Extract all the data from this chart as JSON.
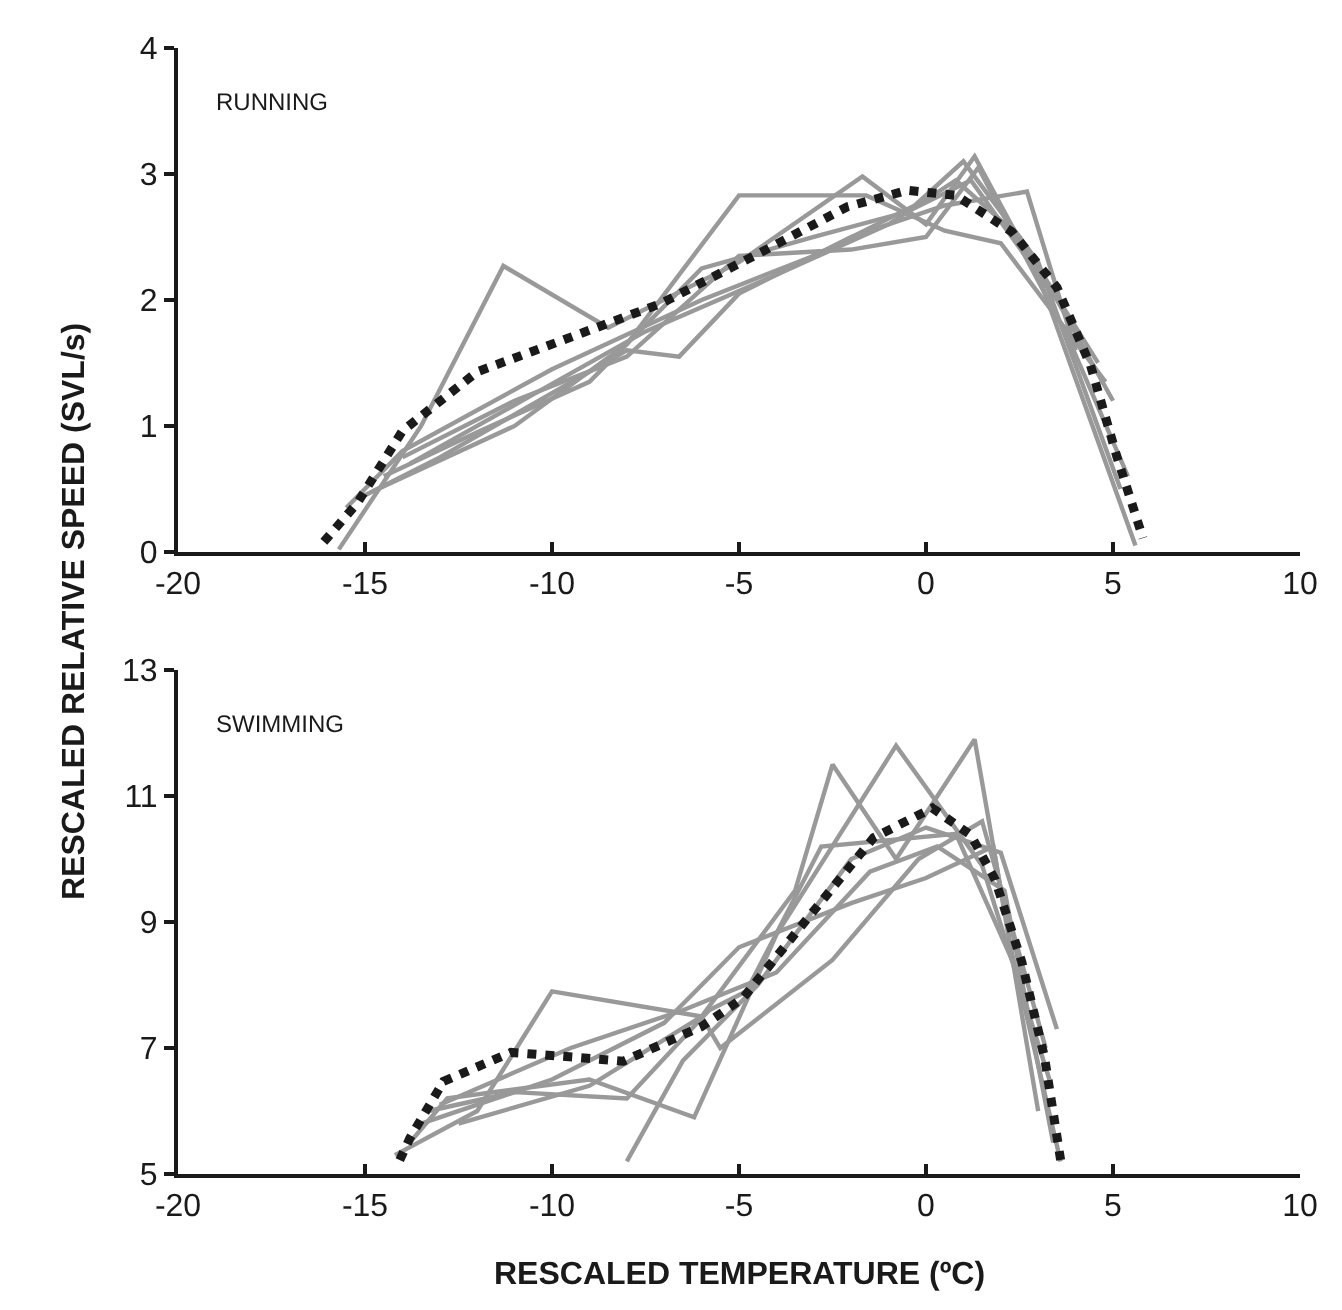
{
  "chart_data": [
    {
      "type": "line",
      "title": "RUNNING",
      "ylabel": "RESCALED RELATIVE SPEED (SVL/s)",
      "xlim": [
        -20,
        10
      ],
      "xticks": [
        -20,
        -15,
        -10,
        -5,
        0,
        5,
        10
      ],
      "ylim": [
        0,
        4
      ],
      "yticks": [
        0,
        1,
        2,
        3,
        4
      ],
      "series": [
        {
          "color": "#999999",
          "line_style": "solid",
          "x": [
            -15.7,
            -13.5,
            -11.3,
            -8.5,
            -5,
            -1.7,
            0,
            1.3,
            3,
            5.6
          ],
          "values": [
            0.02,
            1.0,
            2.27,
            1.78,
            2.3,
            2.98,
            2.6,
            3.14,
            2.2,
            0.05
          ]
        },
        {
          "color": "#999999",
          "line_style": "solid",
          "x": [
            -15,
            -13,
            -8,
            -6.6,
            -5,
            -2,
            0.5,
            2.7,
            4
          ],
          "values": [
            0.45,
            0.75,
            1.6,
            1.55,
            2.05,
            2.5,
            2.75,
            2.86,
            1.6
          ]
        },
        {
          "color": "#999999",
          "line_style": "solid",
          "x": [
            -14.8,
            -11,
            -8,
            -5,
            -1.6,
            0.5,
            2,
            4.8
          ],
          "values": [
            0.48,
            1.0,
            1.65,
            2.83,
            2.83,
            2.55,
            2.45,
            1.35
          ]
        },
        {
          "color": "#999999",
          "line_style": "solid",
          "x": [
            -15.5,
            -14,
            -10,
            -6,
            -3,
            -0.3,
            1,
            3,
            5.2
          ],
          "values": [
            0.35,
            0.8,
            1.45,
            2.0,
            2.35,
            2.75,
            3.1,
            2.3,
            0.5
          ]
        },
        {
          "color": "#999999",
          "line_style": "solid",
          "x": [
            -14.5,
            -12,
            -9,
            -6,
            -3,
            -0.5,
            1.2,
            3.5,
            5
          ],
          "values": [
            0.6,
            0.95,
            1.35,
            2.25,
            2.5,
            2.7,
            2.95,
            2.0,
            1.2
          ]
        },
        {
          "color": "#999999",
          "line_style": "solid",
          "x": [
            -14,
            -11,
            -8,
            -5,
            -2,
            0,
            1.4,
            3.8,
            5.4
          ],
          "values": [
            0.75,
            1.2,
            1.55,
            2.35,
            2.4,
            2.5,
            3.05,
            1.7,
            0.6
          ]
        },
        {
          "color": "#999999",
          "line_style": "solid",
          "x": [
            -13.8,
            -10.5,
            -7.5,
            -4,
            -1,
            0.8,
            2.5,
            4.6
          ],
          "values": [
            0.7,
            1.25,
            1.75,
            2.2,
            2.6,
            2.95,
            2.5,
            1.5
          ]
        },
        {
          "color": "#1a1a1a",
          "line_style": "dotted",
          "x": [
            -16.1,
            -15.2,
            -14.0,
            -12.0,
            -9.9,
            -7.1,
            -4.4,
            -2.1,
            -0.5,
            0.8,
            2.3,
            3.5,
            4.4,
            5.1,
            5.8
          ],
          "values": [
            0.08,
            0.39,
            0.96,
            1.43,
            1.66,
            1.97,
            2.38,
            2.74,
            2.87,
            2.83,
            2.54,
            2.1,
            1.48,
            0.76,
            0.11
          ]
        }
      ]
    },
    {
      "type": "line",
      "title": "SWIMMING",
      "xlabel": "RESCALED TEMPERATURE (ºC)",
      "xlim": [
        -20,
        10
      ],
      "xticks": [
        -20,
        -15,
        -10,
        -5,
        0,
        5,
        10
      ],
      "ylim": [
        5,
        13
      ],
      "yticks": [
        5,
        7,
        9,
        11,
        13
      ],
      "series": [
        {
          "color": "#999999",
          "line_style": "solid",
          "x": [
            -14.2,
            -12,
            -10,
            -6,
            -3.5,
            -2.5,
            -0.8,
            1.3,
            2.3,
            3.6
          ],
          "values": [
            5.3,
            6.0,
            7.9,
            7.5,
            9.5,
            11.5,
            10.0,
            11.9,
            8.5,
            5.2
          ]
        },
        {
          "color": "#999999",
          "line_style": "solid",
          "x": [
            -13.8,
            -12.8,
            -9,
            -6.2,
            -4,
            -0.8,
            1.5,
            3.3
          ],
          "values": [
            5.5,
            6.2,
            6.5,
            5.9,
            8.8,
            11.8,
            9.9,
            6.5
          ]
        },
        {
          "color": "#999999",
          "line_style": "solid",
          "x": [
            -8,
            -6.5,
            -4.5,
            -2,
            0,
            2,
            3.5
          ],
          "values": [
            5.2,
            6.8,
            8.0,
            10.0,
            10.5,
            10.1,
            7.3
          ]
        },
        {
          "color": "#999999",
          "line_style": "solid",
          "x": [
            -13.5,
            -10,
            -7,
            -5,
            -2,
            0,
            1.8,
            3.0
          ],
          "values": [
            5.8,
            6.5,
            7.4,
            8.6,
            9.3,
            9.7,
            10.2,
            6.0
          ]
        },
        {
          "color": "#999999",
          "line_style": "solid",
          "x": [
            -13,
            -9.5,
            -6.5,
            -4,
            -1.5,
            0.3,
            2.1,
            3.4
          ],
          "values": [
            6.1,
            7.0,
            7.6,
            8.2,
            9.8,
            10.2,
            9.5,
            5.5
          ]
        },
        {
          "color": "#999999",
          "line_style": "solid",
          "x": [
            -12.5,
            -9,
            -6,
            -5.5,
            -2.5,
            -0.2,
            1.5,
            3.2
          ],
          "values": [
            5.8,
            6.4,
            7.5,
            7.0,
            8.4,
            10.0,
            10.6,
            7.0
          ]
        },
        {
          "color": "#999999",
          "line_style": "solid",
          "x": [
            -13.3,
            -11,
            -8,
            -5.8,
            -4.8,
            -2.8,
            0.8,
            2.6
          ],
          "values": [
            6.0,
            6.3,
            6.2,
            7.6,
            7.9,
            10.2,
            10.4,
            8.0
          ]
        },
        {
          "color": "#1a1a1a",
          "line_style": "dotted",
          "x": [
            -14.07,
            -13.8,
            -12.9,
            -11.1,
            -9.3,
            -8.1,
            -6.0,
            -4.9,
            -3.0,
            -1.4,
            0.17,
            1.2,
            1.85,
            2.56,
            3.17,
            3.6
          ],
          "values": [
            5.22,
            5.57,
            6.47,
            6.93,
            6.85,
            6.79,
            7.34,
            7.79,
            9.18,
            10.34,
            10.81,
            10.38,
            9.67,
            8.37,
            6.85,
            5.22
          ]
        }
      ]
    }
  ]
}
